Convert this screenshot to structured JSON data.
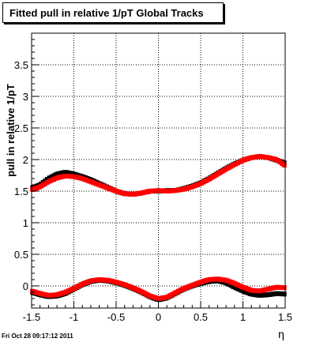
{
  "title": "Fitted pull in relative 1/pT  Global Tracks",
  "footer": "Fri Oct 28 09:17:12 2011",
  "chart_data": {
    "type": "scatter",
    "title": "Fitted pull in relative 1/pT  Global Tracks",
    "xlabel": "η",
    "ylabel": "pull in relative 1/pT",
    "xlim": [
      -1.5,
      1.5
    ],
    "ylim": [
      -0.35,
      4.0
    ],
    "grid": true,
    "x_ticks": [
      "-1.5",
      "-1",
      "-0.5",
      "0",
      "0.5",
      "1",
      "1.5"
    ],
    "y_ticks": [
      "0",
      "0.5",
      "1",
      "1.5",
      "2",
      "2.5",
      "3",
      "3.5"
    ],
    "colors": {
      "black": "#000000",
      "red": "#ff0000"
    },
    "series": [
      {
        "color": "black",
        "x": [
          -1.5,
          -1.4,
          -1.3,
          -1.2,
          -1.1,
          -1.0,
          -0.9,
          -0.8,
          -0.7,
          -0.6,
          -0.5,
          -0.4,
          -0.3,
          -0.2,
          -0.1,
          0.0,
          0.1,
          0.2,
          0.3,
          0.4,
          0.5,
          0.6,
          0.7,
          0.8,
          0.9,
          1.0,
          1.1,
          1.2,
          1.3,
          1.4,
          1.5
        ],
        "y": [
          1.55,
          1.6,
          1.7,
          1.77,
          1.8,
          1.77,
          1.73,
          1.68,
          1.62,
          1.56,
          1.5,
          1.46,
          1.45,
          1.47,
          1.5,
          1.5,
          1.51,
          1.51,
          1.54,
          1.58,
          1.63,
          1.7,
          1.78,
          1.86,
          1.93,
          1.99,
          2.03,
          2.05,
          2.03,
          1.99,
          1.94
        ]
      },
      {
        "color": "red",
        "x": [
          -1.5,
          -1.4,
          -1.3,
          -1.2,
          -1.1,
          -1.0,
          -0.9,
          -0.8,
          -0.7,
          -0.6,
          -0.5,
          -0.4,
          -0.3,
          -0.2,
          -0.1,
          0.0,
          0.1,
          0.2,
          0.3,
          0.4,
          0.5,
          0.6,
          0.7,
          0.8,
          0.9,
          1.0,
          1.1,
          1.2,
          1.3,
          1.4,
          1.5
        ],
        "y": [
          1.52,
          1.57,
          1.65,
          1.71,
          1.74,
          1.73,
          1.7,
          1.65,
          1.6,
          1.55,
          1.5,
          1.46,
          1.45,
          1.47,
          1.5,
          1.51,
          1.5,
          1.51,
          1.53,
          1.57,
          1.62,
          1.69,
          1.77,
          1.85,
          1.92,
          1.99,
          2.03,
          2.05,
          2.03,
          2.0,
          1.9
        ]
      },
      {
        "color": "black",
        "x": [
          -1.5,
          -1.4,
          -1.3,
          -1.2,
          -1.1,
          -1.0,
          -0.9,
          -0.8,
          -0.7,
          -0.6,
          -0.5,
          -0.4,
          -0.3,
          -0.2,
          -0.1,
          0.0,
          0.1,
          0.2,
          0.3,
          0.4,
          0.5,
          0.6,
          0.7,
          0.8,
          0.9,
          1.0,
          1.1,
          1.2,
          1.3,
          1.4,
          1.5
        ],
        "y": [
          -0.1,
          -0.14,
          -0.17,
          -0.16,
          -0.12,
          -0.05,
          0.02,
          0.07,
          0.09,
          0.08,
          0.05,
          0.01,
          -0.04,
          -0.1,
          -0.17,
          -0.22,
          -0.19,
          -0.12,
          -0.05,
          0.0,
          0.04,
          0.07,
          0.08,
          0.05,
          -0.02,
          -0.08,
          -0.13,
          -0.15,
          -0.14,
          -0.12,
          -0.13
        ]
      },
      {
        "color": "red",
        "x": [
          -1.5,
          -1.4,
          -1.3,
          -1.2,
          -1.1,
          -1.0,
          -0.9,
          -0.8,
          -0.7,
          -0.6,
          -0.5,
          -0.4,
          -0.3,
          -0.2,
          -0.1,
          0.0,
          0.1,
          0.2,
          0.3,
          0.4,
          0.5,
          0.6,
          0.7,
          0.8,
          0.9,
          1.0,
          1.1,
          1.2,
          1.3,
          1.4,
          1.5
        ],
        "y": [
          -0.08,
          -0.12,
          -0.15,
          -0.14,
          -0.1,
          -0.04,
          0.03,
          0.08,
          0.1,
          0.09,
          0.06,
          0.02,
          -0.03,
          -0.09,
          -0.16,
          -0.2,
          -0.18,
          -0.11,
          -0.04,
          0.01,
          0.06,
          0.1,
          0.11,
          0.09,
          0.04,
          -0.02,
          -0.07,
          -0.08,
          -0.05,
          -0.02,
          -0.03
        ]
      }
    ]
  }
}
